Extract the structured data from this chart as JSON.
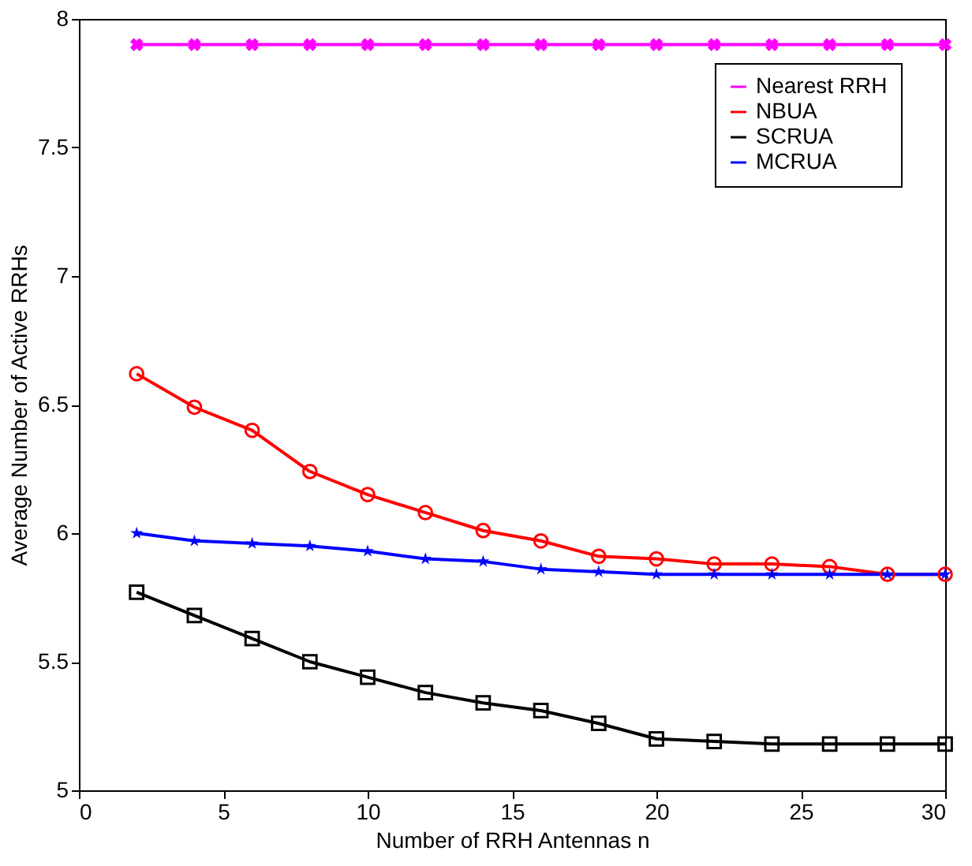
{
  "chart_data": {
    "type": "line",
    "xlabel": "Number of RRH Antennas n",
    "ylabel": "Average Number of Active RRHs",
    "x": [
      2,
      4,
      6,
      8,
      10,
      12,
      14,
      16,
      18,
      20,
      22,
      24,
      26,
      28,
      30
    ],
    "series": [
      {
        "name": "Nearest RRH",
        "color": "#ff00ff",
        "marker": "cross",
        "values": [
          7.9,
          7.9,
          7.9,
          7.9,
          7.9,
          7.9,
          7.9,
          7.9,
          7.9,
          7.9,
          7.9,
          7.9,
          7.9,
          7.9,
          7.9
        ]
      },
      {
        "name": "NBUA",
        "color": "#ff0000",
        "marker": "circle",
        "values": [
          6.62,
          6.49,
          6.4,
          6.24,
          6.15,
          6.08,
          6.01,
          5.97,
          5.91,
          5.9,
          5.88,
          5.88,
          5.87,
          5.84,
          5.84
        ]
      },
      {
        "name": "SCRUA",
        "color": "#000000",
        "marker": "square",
        "values": [
          5.77,
          5.68,
          5.59,
          5.5,
          5.44,
          5.38,
          5.34,
          5.31,
          5.26,
          5.2,
          5.19,
          5.18,
          5.18,
          5.18,
          5.18
        ]
      },
      {
        "name": "MCRUA",
        "color": "#0000ff",
        "marker": "star",
        "values": [
          6.0,
          5.97,
          5.96,
          5.95,
          5.93,
          5.9,
          5.89,
          5.86,
          5.85,
          5.84,
          5.84,
          5.84,
          5.84,
          5.84,
          5.84
        ]
      }
    ],
    "xlim": [
      0,
      30
    ],
    "xticks": [
      0,
      5,
      10,
      15,
      20,
      25,
      30
    ],
    "ylim": [
      5,
      8
    ],
    "yticks": [
      5,
      5.5,
      6,
      6.5,
      7,
      7.5,
      8
    ],
    "grid": false,
    "legend": "top right",
    "line_style": "solid"
  }
}
